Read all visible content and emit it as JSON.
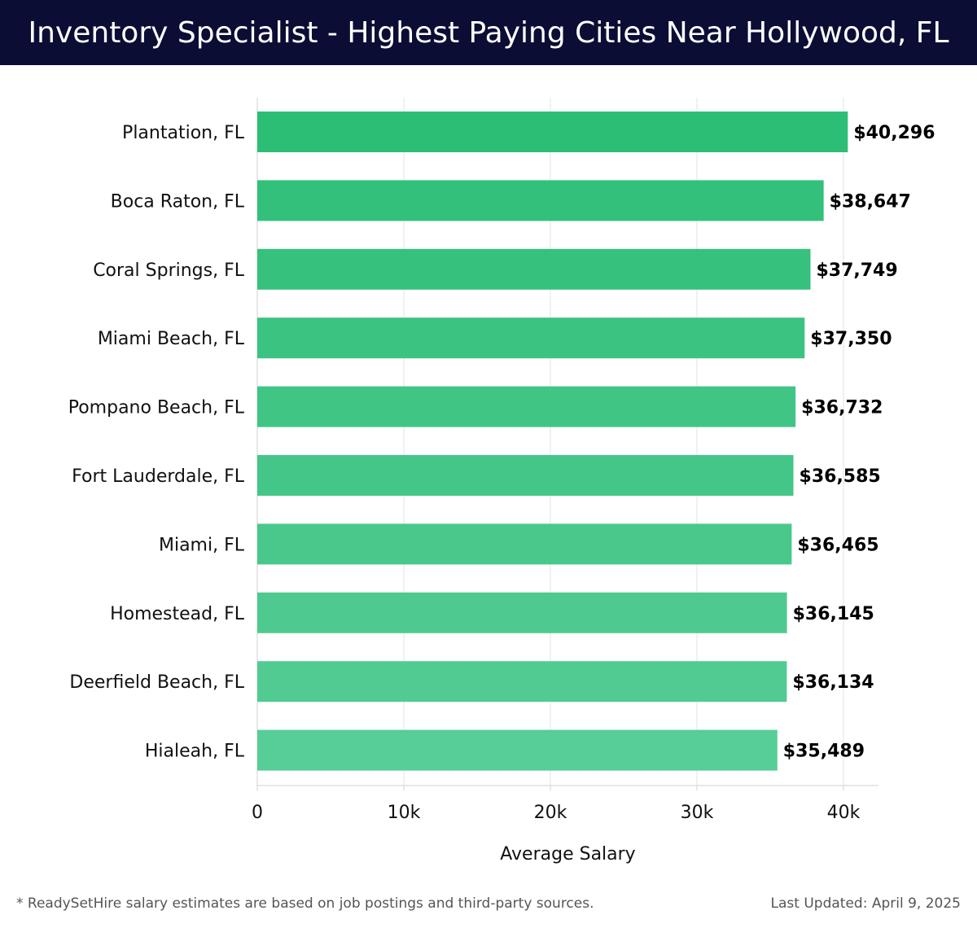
{
  "header": {
    "title": "Inventory Specialist - Highest Paying Cities Near Hollywood, FL"
  },
  "chart_data": {
    "type": "bar",
    "orientation": "horizontal",
    "title": "Inventory Specialist - Highest Paying Cities Near Hollywood, FL",
    "xlabel": "Average Salary",
    "ylabel": "",
    "categories": [
      "Plantation, FL",
      "Boca Raton, FL",
      "Coral Springs, FL",
      "Miami Beach, FL",
      "Pompano Beach, FL",
      "Fort Lauderdale, FL",
      "Miami, FL",
      "Homestead, FL",
      "Deerfield Beach, FL",
      "Hialeah, FL"
    ],
    "values": [
      40296,
      38647,
      37749,
      37350,
      36732,
      36585,
      36465,
      36145,
      36134,
      35489
    ],
    "value_labels": [
      "$40,296",
      "$38,647",
      "$37,749",
      "$37,350",
      "$36,732",
      "$36,585",
      "$36,465",
      "$36,145",
      "$36,134",
      "$35,489"
    ],
    "xticks": [
      0,
      10000,
      20000,
      30000,
      40000
    ],
    "xtick_labels": [
      "0",
      "10k",
      "20k",
      "30k",
      "40k"
    ],
    "xlim": [
      0,
      42400
    ],
    "grid": "vertical",
    "bar_color_top": "#2dbe76",
    "bar_color_bottom": "#57cd97"
  },
  "footer": {
    "note": "* ReadySetHire salary estimates are based on job postings and third-party sources.",
    "updated": "Last Updated: April 9, 2025"
  }
}
